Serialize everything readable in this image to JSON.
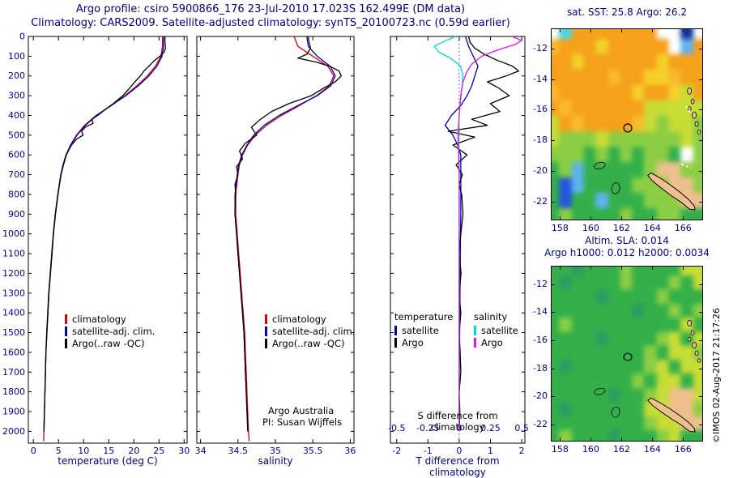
{
  "header": {
    "line1": "Argo profile: csiro 5900866_176 23-Jul-2010 17.023S 162.499E (DM data)",
    "line2": "Climatology: CARS2009. Satellite-adjusted climatology: synTS_20100723.nc (0.59d earlier)"
  },
  "panels": {
    "temperature": {
      "legend": [
        {
          "label": "climatology",
          "color": "#dd0000"
        },
        {
          "label": "satellite-adj. clim.",
          "color": "#0000bb"
        },
        {
          "label": "Argo(..raw -QC)",
          "color": "#000000"
        }
      ]
    },
    "salinity": {
      "legend": [
        {
          "label": "climatology",
          "color": "#dd0000"
        },
        {
          "label": "satellite-adj. clim.",
          "color": "#0000bb"
        },
        {
          "label": "Argo(..raw -QC)",
          "color": "#000000"
        }
      ],
      "annotation1": "Argo Australia",
      "annotation2": "PI: Susan Wijffels"
    },
    "difference": {
      "temperature_legend": {
        "header": "temperature",
        "items": [
          {
            "label": "satellite",
            "color": "#0000bb"
          },
          {
            "label": "Argo",
            "color": "#000000"
          }
        ]
      },
      "salinity_legend": {
        "header": "salinity",
        "items": [
          {
            "label": "satellite",
            "color": "#00d8e0"
          },
          {
            "label": "Argo",
            "color": "#e813e8"
          }
        ]
      }
    }
  },
  "watermark": "©IMOS 02-Aug-2017 21:17:26",
  "chart_data": [
    {
      "id": "temperature-profile",
      "type": "line",
      "xlabel": "temperature (deg C)",
      "xlim": [
        -1,
        30.6
      ],
      "ylim": [
        0,
        2060
      ],
      "xticks": [
        0,
        5,
        10,
        15,
        20,
        25,
        30
      ],
      "yticks": [
        0,
        100,
        200,
        300,
        400,
        500,
        600,
        700,
        800,
        900,
        1000,
        1100,
        1200,
        1300,
        1400,
        1500,
        1600,
        1700,
        1800,
        1900,
        2000
      ],
      "ytick_labels": true,
      "series": [
        {
          "name": "climatology",
          "color": "#dd0000",
          "depth": [
            0,
            50,
            100,
            150,
            200,
            250,
            300,
            350,
            400,
            450,
            500,
            550,
            600,
            650,
            700,
            800,
            900,
            1000,
            1100,
            1200,
            1300,
            1400,
            1500,
            1600,
            1700,
            1800,
            1900,
            2000,
            2050
          ],
          "values": [
            25.7,
            25.7,
            25.4,
            24.3,
            22.7,
            20.6,
            18.2,
            15.4,
            12.6,
            10.4,
            8.7,
            7.5,
            6.6,
            6.0,
            5.5,
            4.9,
            4.4,
            4.0,
            3.7,
            3.4,
            3.1,
            2.9,
            2.7,
            2.5,
            2.4,
            2.3,
            2.2,
            2.1,
            2.05
          ]
        },
        {
          "name": "satellite-adj. clim.",
          "color": "#0000bb",
          "depth": [
            0,
            50,
            100,
            150,
            200,
            250,
            300,
            350,
            400,
            450,
            500,
            550,
            600,
            650,
            700,
            800,
            900,
            1000,
            1100,
            1200,
            1300,
            1400,
            1500,
            1600,
            1700,
            1800,
            1900,
            2000
          ],
          "values": [
            25.9,
            25.9,
            25.6,
            24.6,
            23.0,
            20.9,
            18.4,
            15.5,
            12.5,
            10.2,
            8.6,
            7.4,
            6.5,
            5.9,
            5.45,
            4.85,
            4.35,
            3.95,
            3.65,
            3.35,
            3.05,
            2.85,
            2.65,
            2.5,
            2.4,
            2.3,
            2.2,
            2.1
          ]
        },
        {
          "name": "Argo(..raw -QC)",
          "color": "#000000",
          "depth": [
            0,
            30,
            60,
            80,
            100,
            120,
            150,
            175,
            200,
            230,
            260,
            300,
            340,
            380,
            400,
            420,
            440,
            460,
            480,
            500,
            520,
            550,
            600,
            650,
            700,
            800,
            900,
            1000,
            1100,
            1200,
            1300,
            1400,
            1500,
            1600,
            1700,
            1800,
            1900,
            1975,
            2000
          ],
          "values": [
            26.2,
            26.2,
            26.3,
            26.0,
            25.2,
            24.2,
            23.0,
            22.0,
            21.3,
            20.2,
            19.2,
            17.8,
            15.9,
            13.8,
            12.8,
            11.6,
            11.9,
            10.3,
            9.6,
            9.9,
            8.6,
            7.6,
            6.5,
            6.0,
            5.5,
            4.9,
            4.4,
            4.0,
            3.7,
            3.4,
            3.1,
            2.9,
            2.7,
            2.5,
            2.4,
            2.3,
            2.2,
            2.15,
            2.1
          ]
        }
      ]
    },
    {
      "id": "salinity-profile",
      "type": "line",
      "xlabel": "salinity",
      "xlim": [
        33.95,
        36.05
      ],
      "ylim": [
        0,
        2060
      ],
      "xticks": [
        34,
        34.5,
        35,
        35.5,
        36
      ],
      "yticks": [
        0,
        100,
        200,
        300,
        400,
        500,
        600,
        700,
        800,
        900,
        1000,
        1100,
        1200,
        1300,
        1400,
        1500,
        1600,
        1700,
        1800,
        1900,
        2000
      ],
      "ytick_labels": false,
      "series": [
        {
          "name": "climatology",
          "color": "#dd0000",
          "depth": [
            0,
            50,
            100,
            150,
            200,
            250,
            300,
            350,
            400,
            450,
            500,
            550,
            600,
            650,
            700,
            800,
            900,
            1000,
            1100,
            1200,
            1300,
            1400,
            1500,
            1600,
            1700,
            1800,
            1900,
            2000,
            2050
          ],
          "values": [
            35.25,
            35.3,
            35.5,
            35.7,
            35.78,
            35.72,
            35.55,
            35.32,
            35.08,
            34.88,
            34.73,
            34.63,
            34.56,
            34.52,
            34.5,
            34.47,
            34.47,
            34.49,
            34.51,
            34.53,
            34.55,
            34.57,
            34.59,
            34.6,
            34.61,
            34.62,
            34.63,
            34.64,
            34.65
          ]
        },
        {
          "name": "satellite-adj. clim.",
          "color": "#0000bb",
          "depth": [
            0,
            50,
            100,
            150,
            200,
            250,
            300,
            350,
            400,
            450,
            500,
            550,
            600,
            650,
            700,
            800,
            900,
            1000,
            1100,
            1200,
            1300,
            1400,
            1500,
            1600,
            1700,
            1800,
            1900,
            2000
          ],
          "values": [
            35.42,
            35.44,
            35.56,
            35.73,
            35.8,
            35.74,
            35.56,
            35.3,
            35.05,
            34.85,
            34.71,
            34.62,
            34.55,
            34.51,
            34.49,
            34.46,
            34.46,
            34.48,
            34.5,
            34.52,
            34.54,
            34.56,
            34.58,
            34.59,
            34.6,
            34.61,
            34.62,
            34.63
          ]
        },
        {
          "name": "Argo(..raw -QC)",
          "color": "#000000",
          "depth": [
            0,
            30,
            60,
            90,
            110,
            130,
            150,
            175,
            200,
            230,
            260,
            300,
            340,
            380,
            420,
            460,
            500,
            540,
            580,
            620,
            660,
            700,
            750,
            800,
            900,
            1000,
            1100,
            1200,
            1300,
            1400,
            1500,
            1600,
            1700,
            1800,
            1900,
            1975,
            2000
          ],
          "values": [
            35.44,
            35.45,
            35.47,
            35.42,
            35.3,
            35.55,
            35.72,
            35.85,
            35.88,
            35.8,
            35.65,
            35.48,
            35.18,
            34.95,
            34.8,
            34.68,
            34.75,
            34.6,
            34.52,
            34.56,
            34.48,
            34.5,
            34.46,
            34.47,
            34.46,
            34.48,
            34.5,
            34.52,
            34.54,
            34.56,
            34.58,
            34.59,
            34.6,
            34.61,
            34.62,
            34.63,
            34.63
          ]
        }
      ]
    },
    {
      "id": "difference-profile",
      "type": "line",
      "xlabel": "T difference from climatology",
      "s_axis_label": "S difference from climatology",
      "xlim": [
        -2.2,
        2.1
      ],
      "ylim": [
        0,
        2060
      ],
      "xticks": [
        -2,
        -1,
        0,
        1,
        2
      ],
      "s_ticks": [
        -0.5,
        -0.25,
        0,
        0.25,
        0.5
      ],
      "s_scale": 4,
      "zero_line": true,
      "yticks": [
        0,
        100,
        200,
        300,
        400,
        500,
        600,
        700,
        800,
        900,
        1000,
        1100,
        1200,
        1300,
        1400,
        1500,
        1600,
        1700,
        1800,
        1900,
        2000
      ],
      "ytick_labels": false,
      "series": [
        {
          "name": "satellite T diff",
          "color": "#0000bb",
          "axis": "t",
          "depth": [
            0,
            50,
            100,
            150,
            200,
            250,
            300,
            350,
            400,
            450,
            500,
            550,
            600,
            700,
            800,
            900,
            1000,
            1200,
            1400,
            1600,
            1800,
            2000
          ],
          "values": [
            0.2,
            0.3,
            0.45,
            0.6,
            0.5,
            0.4,
            0.25,
            0.05,
            -0.25,
            -0.45,
            -0.2,
            -0.05,
            0.05,
            0.05,
            0.05,
            0.05,
            0.04,
            0.03,
            0.02,
            0.01,
            0.0,
            0.0
          ]
        },
        {
          "name": "Argo T diff",
          "color": "#000000",
          "axis": "t",
          "depth": [
            0,
            30,
            60,
            90,
            120,
            150,
            175,
            200,
            230,
            260,
            300,
            340,
            380,
            420,
            450,
            480,
            510,
            550,
            600,
            650,
            700,
            750,
            800,
            900,
            1000,
            1100,
            1200,
            1300,
            1400,
            1500,
            1600,
            1700,
            1800,
            1900,
            2000
          ],
          "values": [
            0.3,
            0.35,
            0.5,
            0.8,
            1.2,
            1.7,
            1.9,
            1.5,
            0.9,
            1.25,
            1.6,
            1.0,
            1.3,
            0.4,
            0.9,
            -0.35,
            0.5,
            -0.2,
            0.25,
            -0.1,
            0.1,
            0.0,
            0.08,
            0.12,
            0.05,
            0.0,
            0.06,
            0.0,
            0.05,
            0.0,
            0.03,
            0.05,
            0.0,
            0.02,
            0.0
          ]
        },
        {
          "name": "satellite S diff",
          "color": "#00d8e0",
          "axis": "s",
          "depth": [
            0,
            25,
            50,
            80,
            110,
            150,
            200,
            300,
            400,
            500,
            700,
            1000,
            1400,
            1800,
            2000
          ],
          "values": [
            -0.03,
            -0.12,
            -0.2,
            -0.16,
            -0.07,
            0.01,
            0.03,
            0.015,
            0.0,
            -0.005,
            0.0,
            0.0,
            0.0,
            0.0,
            0.0
          ]
        },
        {
          "name": "Argo S diff",
          "color": "#e813e8",
          "axis": "s",
          "depth": [
            0,
            20,
            40,
            70,
            100,
            140,
            180,
            230,
            300,
            400,
            500,
            700,
            1000,
            1400,
            1800,
            2000
          ],
          "values": [
            0.42,
            0.5,
            0.45,
            0.3,
            0.18,
            0.1,
            0.06,
            0.03,
            0.012,
            0.0,
            -0.01,
            0.0,
            0.0,
            0.0,
            0.0,
            0.0
          ]
        }
      ]
    },
    {
      "id": "sst-map",
      "type": "heatmap",
      "header": "sat. SST: 25.8  Argo: 26.2",
      "lon_range": [
        157.4,
        167.3
      ],
      "lat_range": [
        -10.7,
        -23.2
      ],
      "lon_ticks": [
        158,
        160,
        162,
        164,
        166
      ],
      "lat_ticks": [
        -12,
        -14,
        -16,
        -18,
        -20,
        -22
      ],
      "marker": {
        "lon": 162.4,
        "lat": -17.2
      },
      "grid": {
        "palette": {
          "W": "#ffffff",
          "C": "#45d8e8",
          "B": "#2356dd",
          "b": "#5fb2ee",
          "N": "#0c2f9b",
          "O": "#f6a01b",
          "o": "#f9b92f",
          "Y": "#f4d028",
          "y": "#c8dc36",
          "g": "#8bce44",
          "G": "#33b04a",
          "t": "#2a9e62",
          "P": "#eec08d"
        },
        "rows": [
          "WCOOOOOOOWWNW",
          "oOOOYOOOOOWbO",
          "OOYOOOOOOYOOO",
          "OOOOOoOOYYoOO",
          "oOOOOOOYOOYyO",
          "OoOOOOOOyyyyy",
          "yOoOOOOoygyyg",
          "ygggyggggggyg",
          "gggGgGgGggGWg",
          "GgbGGGGGgPPgg",
          "GBbGGGGgggPPg",
          "GBGGbGGGgggPP",
          "GgGGGGgGGggGG"
        ]
      }
    },
    {
      "id": "sla-map",
      "type": "heatmap",
      "header_line1": "Altim. SLA: 0.014",
      "header_line2": "Argo h1000: 0.012 h2000: 0.0034",
      "lon_range": [
        157.4,
        167.3
      ],
      "lat_range": [
        -10.7,
        -23.2
      ],
      "lon_ticks": [
        158,
        160,
        162,
        164,
        166
      ],
      "lat_ticks": [
        -12,
        -14,
        -16,
        -18,
        -20,
        -22
      ],
      "marker": {
        "lon": 162.4,
        "lat": -17.2
      },
      "grid": {
        "palette": {
          "W": "#ffffff",
          "C": "#45d8e8",
          "B": "#2356dd",
          "b": "#5fb2ee",
          "N": "#0c2f9b",
          "O": "#f6a01b",
          "o": "#f9b92f",
          "Y": "#f4d028",
          "y": "#c8dc36",
          "g": "#8bce44",
          "G": "#33b04a",
          "t": "#2a9e62",
          "P": "#eec08d"
        },
        "rows": [
          "GGtGGGgGGGGyy",
          "GtGGGGgGGGgGy",
          "GGGGtGGGGgGGG",
          "GGGGGGGtGGgGg",
          "GgGGGGGGGGGyG",
          "GGGGtGGGGgyGy",
          "GGGGGGGGgGyyg",
          "GtGGGGGGgyGyy",
          "GGGGGGGgGyyGy",
          "GGGGGtGGgyPPy",
          "GtGGGGGGyyPPg",
          "GGGGGGGGgyyPP",
          "GgGGGtGGGgyGG"
        ]
      }
    }
  ]
}
